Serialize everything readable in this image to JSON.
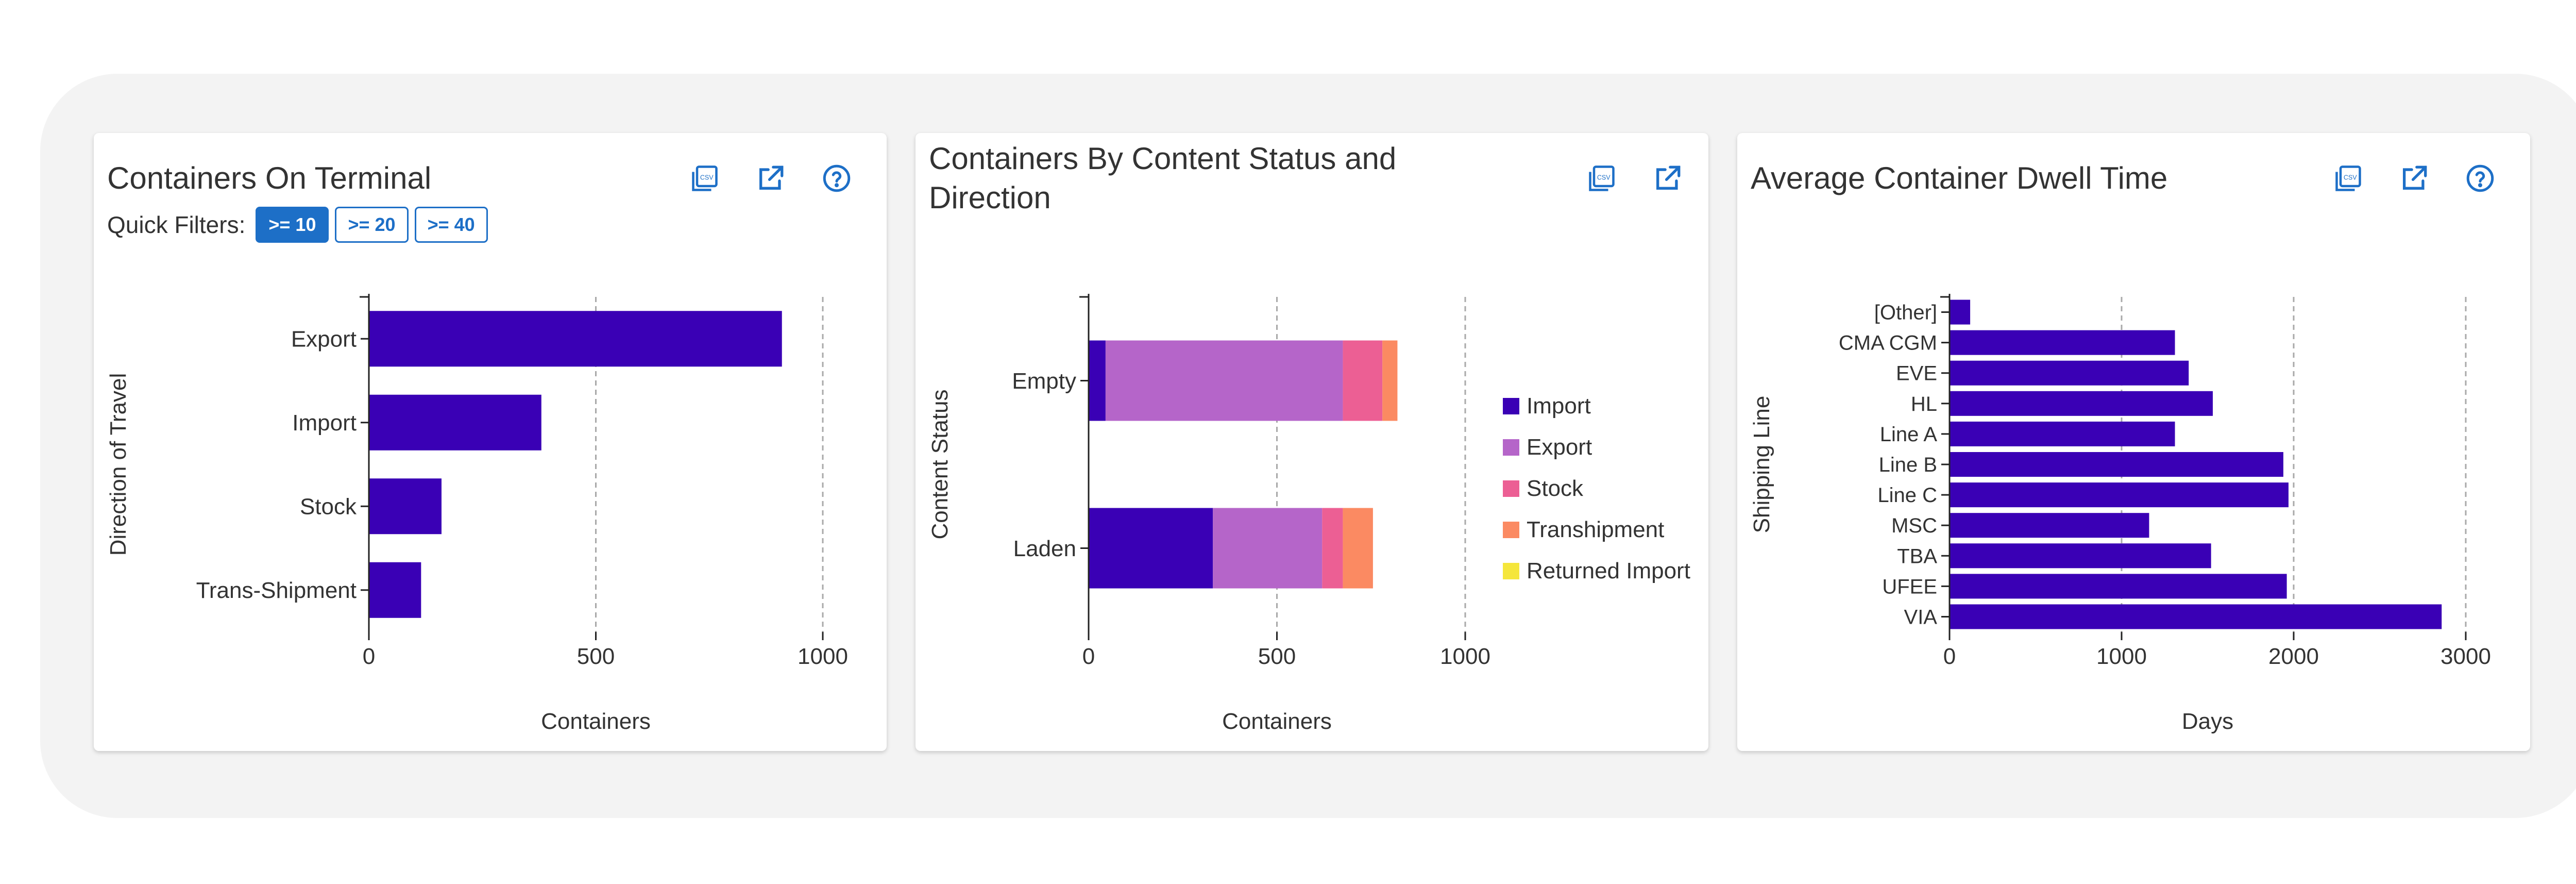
{
  "colors": {
    "primary_blue": "#1d6fc7",
    "import": "#3a00b5",
    "export": "#b565c9",
    "stock": "#ec5f94",
    "transhipment": "#fb8a62",
    "returned_import": "#f5e63b"
  },
  "cards": [
    {
      "title": "Containers On Terminal",
      "icons": [
        "csv-export-icon",
        "open-external-icon",
        "help-icon"
      ],
      "quick_filters": {
        "label": "Quick Filters:",
        "options": [
          ">= 10",
          ">= 20",
          ">= 40"
        ],
        "selected": ">= 10"
      }
    },
    {
      "title_line1": "Containers By Content Status and",
      "title_line2": "Direction",
      "icons": [
        "csv-export-icon",
        "open-external-icon"
      ]
    },
    {
      "title": "Average Container Dwell Time",
      "icons": [
        "csv-export-icon",
        "open-external-icon",
        "help-icon"
      ]
    }
  ],
  "chart_data": [
    {
      "type": "bar",
      "orientation": "horizontal",
      "categories": [
        "Export",
        "Import",
        "Stock",
        "Trans-Shipment"
      ],
      "values": [
        910,
        380,
        160,
        115
      ],
      "xlabel": "Containers",
      "ylabel": "Direction of Travel",
      "xlim": [
        0,
        1000
      ],
      "xticks": [
        "0",
        "500",
        "1000"
      ],
      "grid": "vertical dashed",
      "color": "#3a00b5"
    },
    {
      "type": "bar",
      "orientation": "horizontal",
      "stacked": true,
      "categories": [
        "Empty",
        "Laden"
      ],
      "series": [
        {
          "name": "Import",
          "color": "#3a00b5",
          "values": [
            45,
            330
          ]
        },
        {
          "name": "Export",
          "color": "#b565c9",
          "values": [
            630,
            290
          ]
        },
        {
          "name": "Stock",
          "color": "#ec5f94",
          "values": [
            105,
            55
          ]
        },
        {
          "name": "Transhipment",
          "color": "#fb8a62",
          "values": [
            40,
            80
          ]
        },
        {
          "name": "Returned Import",
          "color": "#f5e63b",
          "values": [
            0,
            0
          ]
        }
      ],
      "xlabel": "Containers",
      "ylabel": "Content Status",
      "xlim": [
        0,
        1000
      ],
      "xticks": [
        "0",
        "500",
        "1000"
      ],
      "legend": "right",
      "grid": "vertical dashed"
    },
    {
      "type": "bar",
      "orientation": "horizontal",
      "categories": [
        "[Other]",
        "CMA CGM",
        "EVE",
        "HL",
        "Line A",
        "Line B",
        "Line C",
        "MSC",
        "TBA",
        "UFEE",
        "VIA"
      ],
      "values": [
        120,
        1310,
        1390,
        1530,
        1310,
        1940,
        1970,
        1160,
        1520,
        1960,
        2860
      ],
      "xlabel": "Days",
      "ylabel": "Shipping Line",
      "xlim": [
        0,
        3000
      ],
      "xticks": [
        "0",
        "1000",
        "2000",
        "3000"
      ],
      "grid": "vertical dashed",
      "color": "#3a00b5"
    }
  ]
}
